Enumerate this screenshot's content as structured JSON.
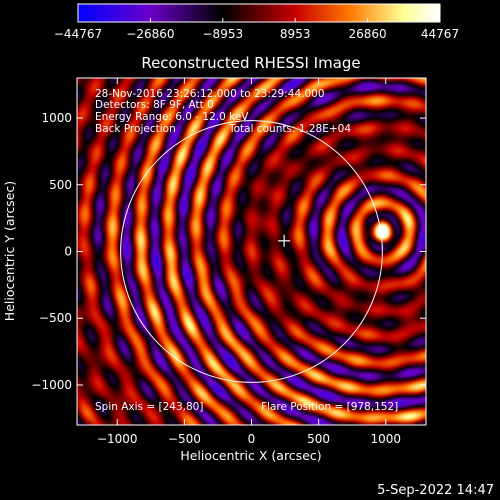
{
  "chart_data": {
    "type": "heatmap",
    "title": "Reconstructed RHESSI Image",
    "xlabel": "Heliocentric X (arcsec)",
    "ylabel": "Heliocentric Y (arcsec)",
    "xlim": [
      -1300,
      1300
    ],
    "ylim": [
      -1300,
      1300
    ],
    "x_ticks": [
      -1000,
      -500,
      0,
      500,
      1000
    ],
    "y_ticks": [
      -1000,
      -500,
      0,
      500,
      1000
    ],
    "x_tick_labels": [
      "−1000",
      "−500",
      "0",
      "500",
      "1000"
    ],
    "y_tick_labels": [
      "−1000",
      "−500",
      "0",
      "500",
      "1000"
    ],
    "colorbar": {
      "min": -44767,
      "max": 44767,
      "ticks": [
        -44767,
        -26860,
        -8953,
        8953,
        26860,
        44767
      ],
      "tick_labels": [
        "−44767",
        "−26860",
        "−8953",
        "8953",
        "26860",
        "44767"
      ],
      "colors": [
        "#0000ff",
        "#6a00c8",
        "#000000",
        "#c80000",
        "#ff7800",
        "#ffff96",
        "#ffffff"
      ]
    },
    "annotations": {
      "time_range": "28-Nov-2016 23:26:12.000 to 23:29:44.000",
      "detectors": "Detectors: 8F 9F, Att 0",
      "energy": "Energy Range: 6.0 - 12.0 keV",
      "method": "Back Projection",
      "counts": "Total counts: 1.28E+04",
      "spin_axis": "Spin Axis = [243,80]",
      "flare_position": "Flare Position = [978,152]"
    },
    "spin_axis": [
      243,
      80
    ],
    "flare_position": [
      978,
      152
    ],
    "solar_radius": 975,
    "grid": false
  },
  "footer_date": "5-Sep-2022 14:47"
}
